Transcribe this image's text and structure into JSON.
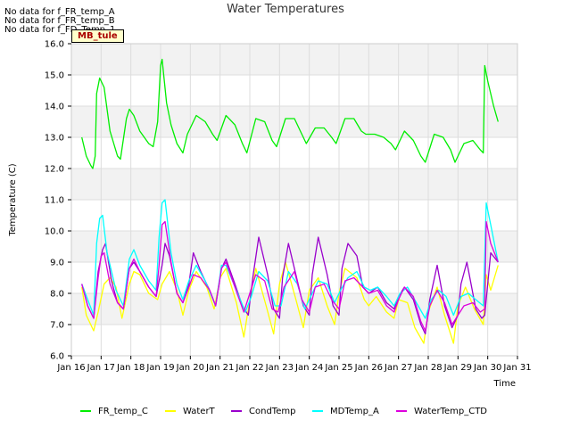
{
  "notices": [
    "No data for f_FR_temp_A",
    "No data for f_FR_temp_B",
    "No data for f_FD_Temp_1"
  ],
  "site_label": "MB_tule",
  "chart_data": {
    "type": "line",
    "title": "Water Temperatures",
    "xlabel": "Time",
    "ylabel": "Temperature (C)",
    "ylim": [
      6.0,
      16.0
    ],
    "yticks": [
      6.0,
      7.0,
      8.0,
      9.0,
      10.0,
      11.0,
      12.0,
      13.0,
      14.0,
      15.0,
      16.0
    ],
    "xlim": [
      "2024-01-16",
      "2024-01-31"
    ],
    "xticks": [
      "Jan 16",
      "Jan 17",
      "Jan 18",
      "Jan 19",
      "Jan 20",
      "Jan 21",
      "Jan 22",
      "Jan 23",
      "Jan 24",
      "Jan 25",
      "Jan 26",
      "Jan 27",
      "Jan 28",
      "Jan 29",
      "Jan 30",
      "Jan 31"
    ],
    "grid": true,
    "background_bands": "alternating light gray",
    "legend_position": "bottom",
    "series": [
      {
        "name": "FR_temp_C",
        "color": "#00ee00",
        "x": [
          16.35,
          16.5,
          16.65,
          16.72,
          16.8,
          16.85,
          16.95,
          17.1,
          17.3,
          17.55,
          17.65,
          17.85,
          17.95,
          18.1,
          18.3,
          18.6,
          18.75,
          18.9,
          19.0,
          19.05,
          19.2,
          19.35,
          19.55,
          19.75,
          19.9,
          20.2,
          20.5,
          20.75,
          20.9,
          21.2,
          21.5,
          21.75,
          21.9,
          22.2,
          22.5,
          22.75,
          22.9,
          23.2,
          23.5,
          23.75,
          23.9,
          24.2,
          24.5,
          24.75,
          24.9,
          25.2,
          25.5,
          25.75,
          25.9,
          26.2,
          26.5,
          26.75,
          26.9,
          27.2,
          27.5,
          27.75,
          27.9,
          28.2,
          28.5,
          28.75,
          28.9,
          29.2,
          29.5,
          29.75,
          29.85,
          29.9,
          30.0,
          30.2,
          30.35
        ],
        "y": [
          13.0,
          12.4,
          12.1,
          12.0,
          12.4,
          14.4,
          14.9,
          14.6,
          13.2,
          12.4,
          12.3,
          13.6,
          13.9,
          13.7,
          13.2,
          12.8,
          12.7,
          13.5,
          15.3,
          15.5,
          14.1,
          13.4,
          12.8,
          12.5,
          13.1,
          13.7,
          13.5,
          13.1,
          12.9,
          13.7,
          13.4,
          12.8,
          12.5,
          13.6,
          13.5,
          12.9,
          12.7,
          13.6,
          13.6,
          13.1,
          12.8,
          13.3,
          13.3,
          13.0,
          12.8,
          13.6,
          13.6,
          13.2,
          13.1,
          13.1,
          13.0,
          12.8,
          12.6,
          13.2,
          12.9,
          12.4,
          12.2,
          13.1,
          13.0,
          12.6,
          12.2,
          12.8,
          12.9,
          12.6,
          12.5,
          15.3,
          14.8,
          14.0,
          13.5
        ]
      },
      {
        "name": "WaterT",
        "color": "#ffff00",
        "x": [
          16.35,
          16.5,
          16.75,
          16.9,
          17.1,
          17.3,
          17.5,
          17.7,
          17.95,
          18.1,
          18.3,
          18.6,
          18.9,
          19.05,
          19.3,
          19.55,
          19.75,
          19.95,
          20.2,
          20.55,
          20.8,
          21.0,
          21.2,
          21.55,
          21.8,
          22.0,
          22.2,
          22.55,
          22.8,
          23.0,
          23.2,
          23.55,
          23.8,
          24.0,
          24.3,
          24.6,
          24.85,
          25.0,
          25.2,
          25.6,
          25.85,
          26.0,
          26.25,
          26.6,
          26.85,
          27.0,
          27.3,
          27.55,
          27.85,
          28.0,
          28.3,
          28.55,
          28.85,
          29.0,
          29.25,
          29.55,
          29.85,
          29.95,
          30.1,
          30.35
        ],
        "y": [
          8.2,
          7.3,
          6.8,
          7.4,
          8.3,
          8.5,
          8.2,
          7.2,
          8.3,
          8.7,
          8.6,
          8.0,
          7.8,
          8.3,
          8.7,
          8.1,
          7.3,
          8.1,
          8.7,
          8.2,
          7.5,
          8.5,
          8.8,
          7.7,
          6.6,
          7.8,
          8.8,
          7.6,
          6.7,
          8.3,
          9.0,
          7.8,
          6.9,
          8.1,
          8.5,
          7.6,
          7.0,
          8.0,
          8.8,
          8.5,
          7.8,
          7.6,
          7.9,
          7.4,
          7.2,
          7.8,
          7.7,
          6.9,
          6.4,
          7.4,
          8.2,
          7.3,
          6.4,
          7.6,
          8.2,
          7.5,
          7.0,
          8.6,
          8.1,
          8.9
        ]
      },
      {
        "name": "CondTemp",
        "color": "#9900cc",
        "x": [
          16.35,
          16.55,
          16.75,
          16.9,
          17.05,
          17.15,
          17.35,
          17.55,
          17.75,
          17.95,
          18.1,
          18.3,
          18.6,
          18.85,
          19.05,
          19.15,
          19.3,
          19.55,
          19.75,
          19.95,
          20.1,
          20.35,
          20.65,
          20.85,
          21.05,
          21.2,
          21.5,
          21.75,
          21.95,
          22.1,
          22.3,
          22.6,
          22.8,
          23.0,
          23.1,
          23.3,
          23.6,
          23.8,
          24.0,
          24.1,
          24.3,
          24.6,
          24.8,
          25.0,
          25.1,
          25.3,
          25.6,
          25.8,
          26.0,
          26.3,
          26.6,
          26.85,
          27.0,
          27.2,
          27.5,
          27.75,
          27.9,
          28.05,
          28.3,
          28.55,
          28.8,
          29.0,
          29.1,
          29.3,
          29.6,
          29.8,
          29.9,
          30.1,
          30.35
        ],
        "y": [
          8.3,
          7.6,
          7.2,
          8.7,
          9.4,
          9.6,
          8.4,
          7.7,
          7.5,
          8.8,
          9.0,
          8.7,
          8.2,
          7.9,
          8.9,
          9.6,
          9.2,
          8.0,
          7.7,
          8.3,
          9.3,
          8.7,
          8.1,
          7.6,
          8.8,
          9.1,
          8.3,
          7.6,
          7.3,
          8.5,
          9.8,
          8.6,
          7.5,
          7.2,
          8.5,
          9.6,
          8.4,
          7.6,
          7.3,
          8.6,
          9.8,
          8.6,
          7.6,
          7.3,
          8.8,
          9.6,
          9.2,
          8.2,
          8.0,
          8.2,
          7.7,
          7.5,
          7.9,
          8.2,
          7.8,
          7.0,
          6.7,
          7.8,
          8.9,
          7.6,
          6.9,
          7.3,
          8.3,
          9.0,
          7.5,
          7.2,
          7.3,
          9.3,
          9.0
        ]
      },
      {
        "name": "MDTemp_A",
        "color": "#00ffff",
        "x": [
          16.35,
          16.55,
          16.75,
          16.85,
          16.95,
          17.05,
          17.2,
          17.5,
          17.75,
          17.95,
          18.1,
          18.3,
          18.6,
          18.85,
          18.95,
          19.05,
          19.15,
          19.35,
          19.55,
          19.75,
          19.95,
          20.2,
          20.5,
          20.85,
          21.05,
          21.2,
          21.55,
          21.85,
          22.05,
          22.3,
          22.6,
          22.85,
          23.05,
          23.3,
          23.6,
          23.85,
          24.05,
          24.3,
          24.6,
          24.85,
          25.05,
          25.3,
          25.6,
          25.85,
          26.05,
          26.3,
          26.6,
          26.85,
          27.05,
          27.3,
          27.6,
          27.9,
          28.1,
          28.35,
          28.6,
          28.85,
          29.1,
          29.35,
          29.6,
          29.85,
          29.95,
          30.1,
          30.35
        ],
        "y": [
          8.3,
          7.8,
          7.3,
          9.6,
          10.4,
          10.5,
          9.3,
          8.1,
          7.6,
          9.1,
          9.4,
          8.9,
          8.4,
          8.1,
          9.8,
          10.9,
          11.0,
          9.3,
          8.3,
          7.8,
          8.4,
          8.9,
          8.4,
          7.6,
          8.9,
          8.9,
          8.1,
          7.4,
          7.9,
          8.7,
          8.4,
          7.6,
          7.6,
          8.7,
          8.3,
          7.5,
          7.9,
          8.4,
          8.3,
          7.7,
          8.1,
          8.5,
          8.7,
          8.2,
          8.1,
          8.2,
          7.9,
          7.6,
          8.0,
          8.2,
          7.7,
          7.2,
          7.8,
          8.1,
          7.9,
          7.3,
          7.9,
          8.0,
          7.8,
          7.6,
          10.9,
          10.2,
          9.0
        ]
      },
      {
        "name": "WaterTemp_CTD",
        "color": "#dd00dd",
        "x": [
          16.35,
          16.55,
          16.75,
          16.9,
          17.0,
          17.1,
          17.3,
          17.55,
          17.75,
          17.95,
          18.1,
          18.3,
          18.6,
          18.85,
          18.95,
          19.05,
          19.15,
          19.35,
          19.55,
          19.75,
          19.95,
          20.1,
          20.35,
          20.65,
          20.85,
          21.05,
          21.2,
          21.5,
          21.8,
          22.0,
          22.2,
          22.5,
          22.75,
          22.95,
          23.15,
          23.5,
          23.75,
          24.0,
          24.2,
          24.5,
          24.75,
          25.0,
          25.2,
          25.5,
          25.8,
          26.0,
          26.3,
          26.6,
          26.85,
          27.0,
          27.2,
          27.5,
          27.75,
          27.9,
          28.05,
          28.3,
          28.55,
          28.8,
          29.0,
          29.2,
          29.5,
          29.75,
          29.9,
          29.95,
          30.1,
          30.35
        ],
        "y": [
          8.3,
          7.6,
          7.2,
          8.5,
          9.2,
          9.3,
          8.3,
          7.7,
          7.5,
          8.8,
          9.1,
          8.7,
          8.2,
          7.9,
          8.9,
          10.2,
          10.3,
          9.0,
          8.0,
          7.7,
          8.2,
          8.6,
          8.5,
          8.1,
          7.6,
          8.8,
          9.0,
          8.2,
          7.4,
          8.0,
          8.6,
          8.4,
          7.5,
          7.4,
          8.2,
          8.7,
          7.8,
          7.4,
          8.2,
          8.3,
          7.8,
          7.5,
          8.4,
          8.5,
          8.2,
          8.0,
          8.1,
          7.6,
          7.4,
          7.8,
          8.2,
          7.9,
          7.1,
          6.8,
          7.6,
          8.1,
          7.7,
          7.0,
          7.3,
          7.6,
          7.7,
          7.4,
          7.5,
          10.3,
          9.6,
          9.0
        ]
      }
    ]
  }
}
